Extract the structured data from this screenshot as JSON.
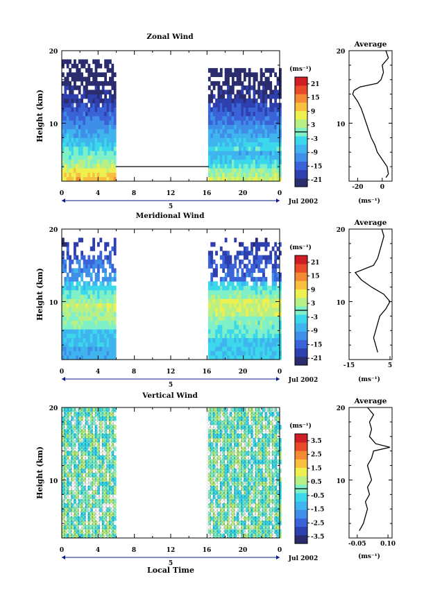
{
  "figure": {
    "xlabel": "Local Time",
    "date_label": "Jul 2002",
    "colorbar_unit": "(ms⁻¹)",
    "average_title": "Average",
    "ylabel": "Height (km)",
    "x_ticks": [
      "0",
      "4",
      "8",
      "12",
      "16",
      "20",
      "0"
    ],
    "y_ticks": [
      "10",
      "20"
    ],
    "day_label": "5"
  },
  "chart_data": [
    {
      "type": "heatmap",
      "title": "Zonal Wind",
      "x_range_hours": [
        0,
        24
      ],
      "y_range_km": [
        2,
        20
      ],
      "data_gap_hours": [
        6,
        16
      ],
      "colorbar_ticks": [
        "21",
        "15",
        "9",
        "3",
        "-3",
        "-9",
        "-15",
        "-21"
      ],
      "colorbar_range": [
        -24,
        24
      ],
      "average_profile": {
        "title": "Average",
        "x_ticks": [
          "-20",
          "0"
        ],
        "xlim": [
          -27,
          8
        ],
        "unit": "(ms⁻¹)",
        "height_km": [
          2.5,
          3,
          4,
          5,
          6,
          7,
          8,
          9,
          10,
          11,
          12,
          13,
          14,
          14.5,
          15,
          15.5,
          16,
          17,
          18,
          19,
          20
        ],
        "values": [
          3,
          5,
          4,
          0,
          -4,
          -6,
          -9,
          -11,
          -13,
          -15,
          -17,
          -20,
          -24,
          -23,
          -18,
          -4,
          -1,
          1,
          0,
          5,
          3
        ]
      }
    },
    {
      "type": "heatmap",
      "title": "Meridional Wind",
      "x_range_hours": [
        0,
        24
      ],
      "y_range_km": [
        2,
        20
      ],
      "data_gap_hours": [
        6,
        16
      ],
      "colorbar_ticks": [
        "21",
        "15",
        "9",
        "3",
        "-3",
        "-9",
        "-15",
        "-21"
      ],
      "colorbar_range": [
        -24,
        24
      ],
      "average_profile": {
        "title": "Average",
        "x_ticks": [
          "-15",
          "5"
        ],
        "xlim": [
          -15,
          6
        ],
        "unit": "(ms⁻¹)",
        "height_km": [
          3,
          4,
          5,
          6,
          7,
          8,
          9,
          10,
          11,
          12,
          13,
          14,
          15,
          16,
          17,
          18,
          19,
          20
        ],
        "values": [
          -1,
          -2,
          -3,
          -2,
          -1,
          0,
          3,
          5,
          2,
          -4,
          -9,
          -12,
          -3,
          -1,
          0,
          1,
          2,
          1
        ]
      }
    },
    {
      "type": "heatmap",
      "title": "Vertical Wind",
      "x_range_hours": [
        0,
        24
      ],
      "y_range_km": [
        2,
        20
      ],
      "data_gap_hours": [
        6,
        16
      ],
      "colorbar_ticks": [
        "3.5",
        "2.5",
        "1.5",
        "0.5",
        "-0.5",
        "-1.5",
        "-2.5",
        "-3.5"
      ],
      "colorbar_range": [
        -4,
        4
      ],
      "average_profile": {
        "title": "Average",
        "x_ticks": [
          "-0.05",
          "0.10"
        ],
        "xlim": [
          -0.09,
          0.12
        ],
        "unit": "(ms⁻¹)",
        "height_km": [
          3,
          4,
          5,
          6,
          7,
          8,
          9,
          10,
          11,
          12,
          13,
          14,
          14.5,
          15,
          16,
          17,
          18,
          19,
          20
        ],
        "values": [
          -0.04,
          -0.02,
          -0.01,
          0.0,
          -0.01,
          0.01,
          0.0,
          0.02,
          0.01,
          0.0,
          0.02,
          0.03,
          0.11,
          0.04,
          0.01,
          0.02,
          0.01,
          0.03,
          0.0
        ]
      }
    }
  ],
  "colors": {
    "scale": [
      "#2b2c6e",
      "#2e3fae",
      "#3a63d8",
      "#3f8ee8",
      "#3fb4ee",
      "#3ad8ea",
      "#7ff0c8",
      "#b8f086",
      "#eef050",
      "#f8c040",
      "#f48a34",
      "#e84a2a",
      "#d01f24"
    ],
    "contour": "#000000"
  }
}
